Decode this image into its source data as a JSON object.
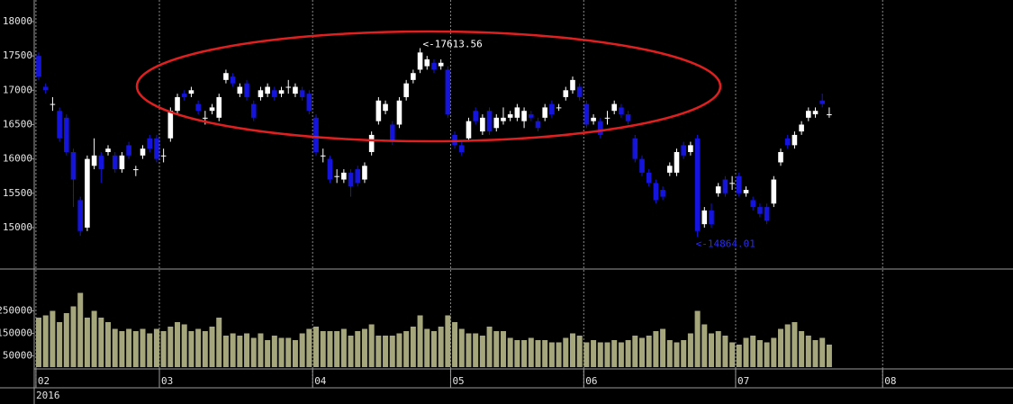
{
  "chart_data": [
    {
      "type": "candlestick",
      "annotations": [
        "<-17613.56",
        "<-14864.01"
      ],
      "up_color": "#ffffff",
      "down_color": "#1414dc",
      "open": [
        17500,
        17050,
        16800,
        16700,
        16600,
        16100,
        15400,
        15000,
        15900,
        16050,
        16100,
        16050,
        15850,
        16200,
        15850,
        16050,
        16300,
        16300,
        16050,
        16300,
        16700,
        16950,
        16950,
        16800,
        16600,
        16700,
        16600,
        17150,
        17200,
        16950,
        17100,
        16800,
        16900,
        16950,
        17000,
        16950,
        17050,
        16950,
        17000,
        16950,
        16600,
        16050,
        16000,
        15750,
        15700,
        15800,
        15850,
        15700,
        16100,
        16550,
        16700,
        16500,
        16500,
        16900,
        17150,
        17300,
        17350,
        17400,
        17350,
        17300,
        16350,
        16200,
        16300,
        16700,
        16400,
        16700,
        16450,
        16550,
        16600,
        16600,
        16550,
        16650,
        16550,
        16600,
        16800,
        16750,
        16900,
        17000,
        17050,
        16800,
        16550,
        16550,
        16600,
        16700,
        16750,
        16650,
        16300,
        16000,
        15800,
        15650,
        15550,
        15800,
        15800,
        16200,
        16100,
        16300,
        15050,
        15250,
        15500,
        15700,
        15650,
        15750,
        15500,
        15400,
        15300,
        15300,
        15350,
        15950,
        16300,
        16200,
        16400,
        16600,
        16650,
        16850,
        16650
      ],
      "high": [
        17550,
        17100,
        16900,
        16750,
        16650,
        16150,
        15450,
        16050,
        16300,
        16100,
        16200,
        16100,
        16100,
        16250,
        15900,
        16200,
        16350,
        16350,
        16150,
        16750,
        16950,
        17000,
        17050,
        16850,
        16700,
        16800,
        16950,
        17300,
        17250,
        17100,
        17150,
        16850,
        17050,
        17100,
        17050,
        17050,
        17150,
        17100,
        17050,
        17000,
        16650,
        16150,
        16050,
        15850,
        15850,
        15850,
        15900,
        15950,
        16400,
        16900,
        16850,
        16550,
        16900,
        17150,
        17300,
        17613.56,
        17500,
        17450,
        17450,
        17350,
        16400,
        16250,
        16600,
        16750,
        16650,
        16750,
        16650,
        16750,
        16700,
        16800,
        16750,
        16700,
        16600,
        16800,
        16850,
        16800,
        17050,
        17200,
        17100,
        16850,
        16650,
        16600,
        16700,
        16850,
        16800,
        16700,
        16350,
        16050,
        15850,
        15700,
        15600,
        15950,
        16150,
        16250,
        16250,
        16350,
        15300,
        15350,
        15650,
        15750,
        15750,
        15800,
        15600,
        15450,
        15350,
        15350,
        15750,
        16150,
        16350,
        16400,
        16550,
        16750,
        16750,
        16950,
        16750
      ],
      "low": [
        17150,
        16950,
        16700,
        16250,
        16050,
        15300,
        14880,
        14950,
        15850,
        15650,
        16050,
        15800,
        15800,
        16000,
        15750,
        16000,
        16100,
        15950,
        15950,
        16250,
        16650,
        16850,
        16900,
        16650,
        16500,
        16650,
        16550,
        17100,
        17050,
        16900,
        16850,
        16550,
        16850,
        16900,
        16850,
        16900,
        16950,
        16900,
        16850,
        16650,
        16050,
        15950,
        15650,
        15650,
        15650,
        15450,
        15600,
        15650,
        16050,
        16500,
        16650,
        16200,
        16450,
        16850,
        17100,
        17250,
        17300,
        17250,
        17300,
        16600,
        16150,
        16050,
        16250,
        16500,
        16350,
        16350,
        16400,
        16500,
        16550,
        16550,
        16450,
        16550,
        16400,
        16550,
        16600,
        16700,
        16850,
        16950,
        16850,
        16450,
        16500,
        16300,
        16500,
        16650,
        16600,
        16500,
        15950,
        15750,
        15600,
        15350,
        15400,
        15750,
        15750,
        16000,
        16050,
        14864.01,
        15000,
        15000,
        15450,
        15450,
        15550,
        15450,
        15450,
        15250,
        15150,
        15050,
        15300,
        15900,
        16150,
        16150,
        16350,
        16550,
        16600,
        16750,
        16600
      ],
      "close": [
        17200,
        17000,
        16800,
        16300,
        16100,
        15700,
        14950,
        16000,
        16050,
        15850,
        16150,
        15850,
        16050,
        16050,
        15850,
        16150,
        16150,
        16000,
        16050,
        16700,
        16900,
        16900,
        17000,
        16700,
        16600,
        16750,
        16900,
        17250,
        17100,
        17050,
        16900,
        16600,
        17000,
        17050,
        16900,
        17000,
        17050,
        17050,
        16900,
        16700,
        16100,
        16050,
        15700,
        15750,
        15800,
        15600,
        15650,
        15900,
        16350,
        16850,
        16800,
        16250,
        16850,
        17100,
        17250,
        17550,
        17450,
        17300,
        17400,
        16650,
        16200,
        16100,
        16550,
        16550,
        16600,
        16400,
        16600,
        16600,
        16650,
        16750,
        16700,
        16600,
        16450,
        16750,
        16650,
        16750,
        17000,
        17150,
        16900,
        16500,
        16600,
        16350,
        16600,
        16800,
        16650,
        16550,
        16000,
        15800,
        15650,
        15400,
        15450,
        15900,
        16100,
        16050,
        16200,
        14950,
        15250,
        15050,
        15600,
        15500,
        15650,
        15500,
        15550,
        15300,
        15200,
        15100,
        15700,
        16100,
        16200,
        16350,
        16500,
        16700,
        16700,
        16800,
        16650
      ],
      "ylim": [
        14410,
        18288
      ],
      "yticks": [
        15000,
        15500,
        16000,
        16500,
        17000,
        17500,
        18000
      ],
      "xlim": [
        -0.65,
        140.5
      ],
      "xticks": [
        {
          "value": -0.4,
          "label": "02"
        },
        {
          "value": 17.4,
          "label": "03"
        },
        {
          "value": 39.5,
          "label": "04"
        },
        {
          "value": 59.4,
          "label": "05"
        },
        {
          "value": 78.6,
          "label": "06"
        },
        {
          "value": 100.5,
          "label": "07"
        },
        {
          "value": 121.7,
          "label": "08"
        }
      ],
      "x_year_label": "2016",
      "grid": true
    },
    {
      "type": "bar",
      "color": "#a6a67c",
      "values": [
        220000,
        230000,
        250000,
        200000,
        240000,
        270000,
        330000,
        220000,
        250000,
        220000,
        200000,
        170000,
        160000,
        170000,
        160000,
        170000,
        150000,
        170000,
        160000,
        180000,
        200000,
        190000,
        160000,
        170000,
        160000,
        180000,
        220000,
        140000,
        150000,
        140000,
        150000,
        130000,
        150000,
        120000,
        140000,
        130000,
        130000,
        120000,
        150000,
        170000,
        180000,
        160000,
        160000,
        160000,
        170000,
        140000,
        160000,
        170000,
        190000,
        140000,
        140000,
        140000,
        150000,
        160000,
        180000,
        230000,
        170000,
        160000,
        180000,
        230000,
        200000,
        170000,
        150000,
        150000,
        140000,
        180000,
        160000,
        160000,
        130000,
        120000,
        120000,
        130000,
        120000,
        120000,
        110000,
        110000,
        130000,
        150000,
        140000,
        110000,
        120000,
        110000,
        110000,
        120000,
        110000,
        120000,
        140000,
        130000,
        140000,
        160000,
        170000,
        120000,
        110000,
        120000,
        150000,
        250000,
        190000,
        150000,
        160000,
        140000,
        110000,
        100000,
        130000,
        140000,
        120000,
        110000,
        130000,
        170000,
        190000,
        200000,
        160000,
        140000,
        120000,
        130000,
        100000
      ],
      "ylim": [
        0,
        432000
      ],
      "yticks": [
        50000,
        150000,
        250000
      ]
    }
  ]
}
